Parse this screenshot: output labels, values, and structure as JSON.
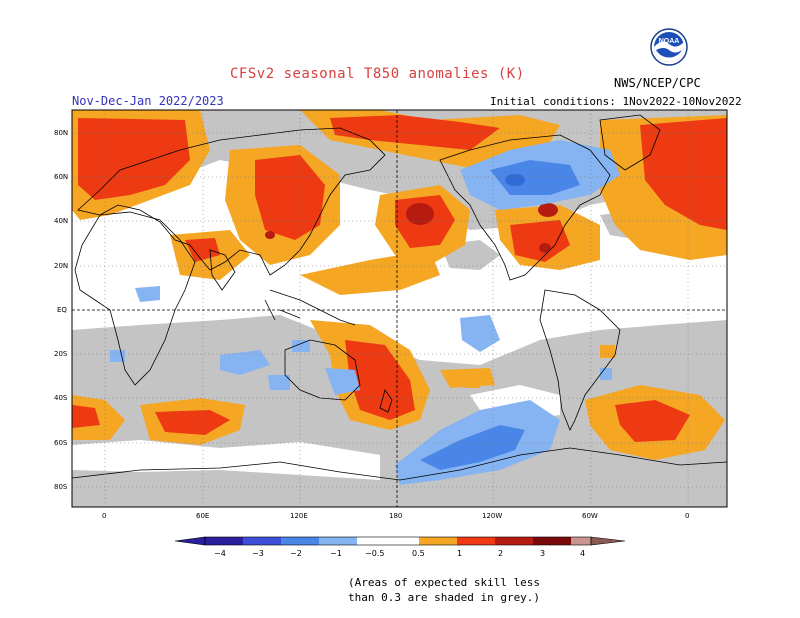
{
  "title": "CFSv2 seasonal T850 anomalies (K)",
  "subtitle": "Nov-Dec-Jan 2022/2023",
  "initial_conditions": "Initial conditions: 1Nov2022-10Nov2022",
  "organization": "NWS/NCEP/CPC",
  "logo_text": "NOAA",
  "lat_labels": [
    "80N",
    "60N",
    "40N",
    "20N",
    "EQ",
    "20S",
    "40S",
    "60S",
    "80S"
  ],
  "lon_labels": [
    "0",
    "60E",
    "120E",
    "180",
    "120W",
    "60W",
    "0"
  ],
  "colorbar": {
    "labels": [
      "−4",
      "−3",
      "−2",
      "−1",
      "−0.5",
      "0.5",
      "1",
      "2",
      "3",
      "4"
    ],
    "colors": [
      "#2a1f9c",
      "#3d4fd8",
      "#4a86e8",
      "#86b4f2",
      "#ffffff",
      "#f5a623",
      "#ee3a12",
      "#b61b12",
      "#7a0a0a",
      "#c9958e",
      "#8a5a52"
    ],
    "grey": "#c4c4c4"
  },
  "note_line1": "(Areas of expected skill less",
  "note_line2": "than 0.3 are shaded in grey.)"
}
